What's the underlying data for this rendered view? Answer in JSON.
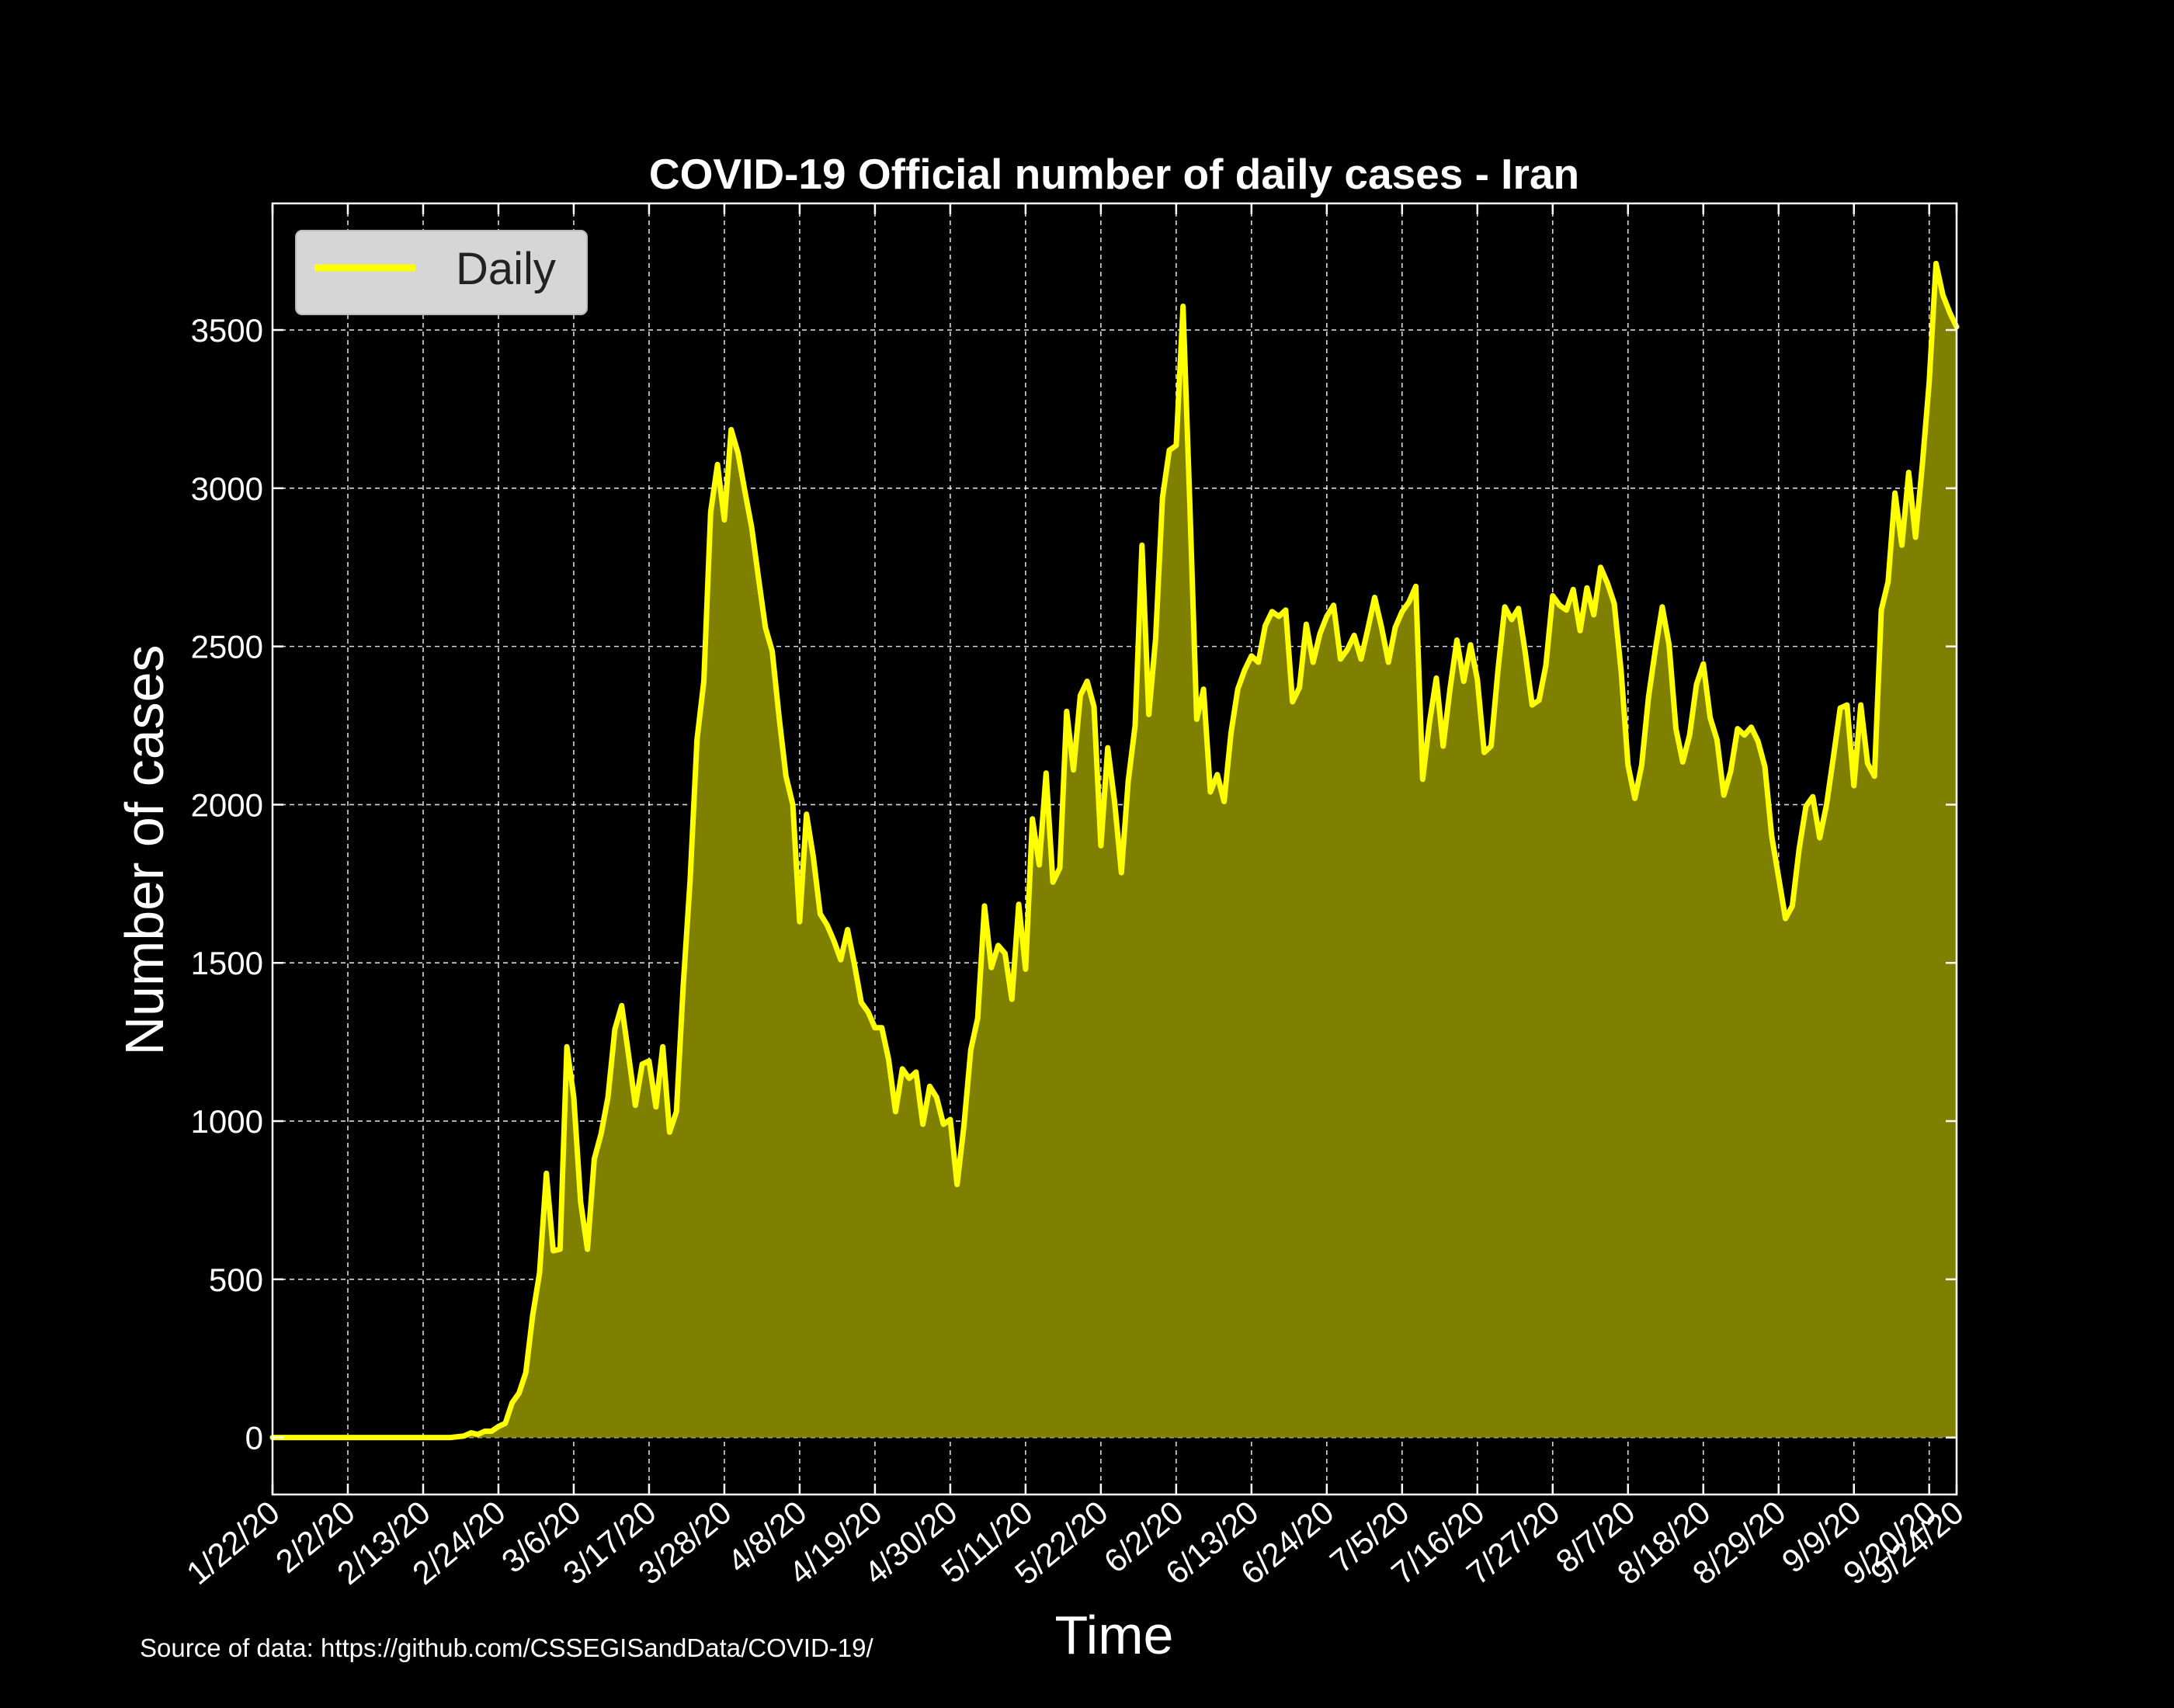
{
  "chart_data": {
    "type": "area",
    "title": "COVID-19 Official number of daily cases - Iran",
    "xlabel": "Time",
    "ylabel": "Number of cases",
    "source_note": "Source of data: https://github.com/CSSEGISandData/COVID-19/",
    "x_start": "1/22/20",
    "x_end": "9/24/20",
    "x_tick_labels": [
      "1/22/20",
      "2/2/20",
      "2/13/20",
      "2/24/20",
      "3/6/20",
      "3/17/20",
      "3/28/20",
      "4/8/20",
      "4/19/20",
      "4/30/20",
      "5/11/20",
      "5/22/20",
      "6/2/20",
      "6/13/20",
      "6/24/20",
      "7/5/20",
      "7/16/20",
      "7/27/20",
      "8/7/20",
      "8/18/20",
      "8/29/20",
      "9/9/20",
      "9/20/20",
      "9/24/20"
    ],
    "y_ticks": [
      0,
      500,
      1000,
      1500,
      2000,
      2500,
      3000,
      3500
    ],
    "ylim": [
      -180,
      3900
    ],
    "grid": true,
    "legend": {
      "position": "top-left",
      "entries": [
        "Daily"
      ]
    },
    "colors": {
      "line": "#ffff00",
      "fill": "#808000",
      "background": "#000000",
      "grid": "#ffffff",
      "axes": "#ffffff"
    },
    "series": [
      {
        "name": "Daily",
        "points": [
          [
            "1/22/20",
            0
          ],
          [
            "2/10/20",
            0
          ],
          [
            "2/17/20",
            0
          ],
          [
            "2/19/20",
            5
          ],
          [
            "2/20/20",
            15
          ],
          [
            "2/21/20",
            10
          ],
          [
            "2/22/20",
            20
          ],
          [
            "2/23/20",
            20
          ],
          [
            "2/24/20",
            35
          ],
          [
            "2/25/20",
            45
          ],
          [
            "2/26/20",
            110
          ],
          [
            "2/27/20",
            140
          ],
          [
            "2/28/20",
            205
          ],
          [
            "2/29/20",
            385
          ],
          [
            "3/1/20",
            520
          ],
          [
            "3/2/20",
            835
          ],
          [
            "3/3/20",
            590
          ],
          [
            "3/4/20",
            595
          ],
          [
            "3/5/20",
            1235
          ],
          [
            "3/6/20",
            1075
          ],
          [
            "3/7/20",
            745
          ],
          [
            "3/8/20",
            595
          ],
          [
            "3/9/20",
            880
          ],
          [
            "3/10/20",
            960
          ],
          [
            "3/11/20",
            1075
          ],
          [
            "3/12/20",
            1290
          ],
          [
            "3/13/20",
            1365
          ],
          [
            "3/14/20",
            1210
          ],
          [
            "3/15/20",
            1050
          ],
          [
            "3/16/20",
            1180
          ],
          [
            "3/17/20",
            1190
          ],
          [
            "3/18/20",
            1045
          ],
          [
            "3/19/20",
            1235
          ],
          [
            "3/20/20",
            965
          ],
          [
            "3/21/20",
            1030
          ],
          [
            "3/22/20",
            1430
          ],
          [
            "3/23/20",
            1760
          ],
          [
            "3/24/20",
            2205
          ],
          [
            "3/25/20",
            2390
          ],
          [
            "3/26/20",
            2925
          ],
          [
            "3/27/20",
            3075
          ],
          [
            "3/28/20",
            2900
          ],
          [
            "3/29/20",
            3185
          ],
          [
            "3/30/20",
            3110
          ],
          [
            "3/31/20",
            2990
          ],
          [
            "4/1/20",
            2875
          ],
          [
            "4/2/20",
            2715
          ],
          [
            "4/3/20",
            2560
          ],
          [
            "4/4/20",
            2485
          ],
          [
            "4/5/20",
            2275
          ],
          [
            "4/6/20",
            2090
          ],
          [
            "4/7/20",
            2000
          ],
          [
            "4/8/20",
            1630
          ],
          [
            "4/9/20",
            1970
          ],
          [
            "4/10/20",
            1835
          ],
          [
            "4/11/20",
            1655
          ],
          [
            "4/12/20",
            1620
          ],
          [
            "4/13/20",
            1570
          ],
          [
            "4/14/20",
            1510
          ],
          [
            "4/15/20",
            1605
          ],
          [
            "4/16/20",
            1495
          ],
          [
            "4/17/20",
            1375
          ],
          [
            "4/18/20",
            1345
          ],
          [
            "4/19/20",
            1295
          ],
          [
            "4/20/20",
            1295
          ],
          [
            "4/21/20",
            1195
          ],
          [
            "4/22/20",
            1030
          ],
          [
            "4/23/20",
            1165
          ],
          [
            "4/24/20",
            1135
          ],
          [
            "4/25/20",
            1155
          ],
          [
            "4/26/20",
            990
          ],
          [
            "4/27/20",
            1110
          ],
          [
            "4/28/20",
            1075
          ],
          [
            "4/29/20",
            990
          ],
          [
            "4/30/20",
            1005
          ],
          [
            "5/1/20",
            800
          ],
          [
            "5/2/20",
            985
          ],
          [
            "5/3/20",
            1225
          ],
          [
            "5/4/20",
            1325
          ],
          [
            "5/5/20",
            1680
          ],
          [
            "5/6/20",
            1485
          ],
          [
            "5/7/20",
            1555
          ],
          [
            "5/8/20",
            1530
          ],
          [
            "5/9/20",
            1385
          ],
          [
            "5/10/20",
            1685
          ],
          [
            "5/11/20",
            1480
          ],
          [
            "5/12/20",
            1955
          ],
          [
            "5/13/20",
            1810
          ],
          [
            "5/14/20",
            2100
          ],
          [
            "5/15/20",
            1755
          ],
          [
            "5/16/20",
            1800
          ],
          [
            "5/17/20",
            2295
          ],
          [
            "5/18/20",
            2110
          ],
          [
            "5/19/20",
            2345
          ],
          [
            "5/20/20",
            2390
          ],
          [
            "5/21/20",
            2310
          ],
          [
            "5/22/20",
            1870
          ],
          [
            "5/23/20",
            2180
          ],
          [
            "5/24/20",
            2010
          ],
          [
            "5/25/20",
            1785
          ],
          [
            "5/26/20",
            2075
          ],
          [
            "5/27/20",
            2250
          ],
          [
            "5/28/20",
            2820
          ],
          [
            "5/29/20",
            2285
          ],
          [
            "5/30/20",
            2525
          ],
          [
            "5/31/20",
            2970
          ],
          [
            "6/1/20",
            3120
          ],
          [
            "6/2/20",
            3135
          ],
          [
            "6/3/20",
            3575
          ],
          [
            "6/4/20",
            2945
          ],
          [
            "6/5/20",
            2270
          ],
          [
            "6/6/20",
            2365
          ],
          [
            "6/7/20",
            2040
          ],
          [
            "6/8/20",
            2095
          ],
          [
            "6/9/20",
            2010
          ],
          [
            "6/10/20",
            2225
          ],
          [
            "6/11/20",
            2365
          ],
          [
            "6/12/20",
            2425
          ],
          [
            "6/13/20",
            2470
          ],
          [
            "6/14/20",
            2450
          ],
          [
            "6/15/20",
            2565
          ],
          [
            "6/16/20",
            2610
          ],
          [
            "6/17/20",
            2595
          ],
          [
            "6/18/20",
            2615
          ],
          [
            "6/19/20",
            2325
          ],
          [
            "6/20/20",
            2370
          ],
          [
            "6/21/20",
            2570
          ],
          [
            "6/22/20",
            2450
          ],
          [
            "6/23/20",
            2540
          ],
          [
            "6/24/20",
            2595
          ],
          [
            "6/25/20",
            2630
          ],
          [
            "6/26/20",
            2460
          ],
          [
            "6/27/20",
            2490
          ],
          [
            "6/28/20",
            2535
          ],
          [
            "6/29/20",
            2460
          ],
          [
            "6/30/20",
            2555
          ],
          [
            "7/1/20",
            2655
          ],
          [
            "7/2/20",
            2560
          ],
          [
            "7/3/20",
            2450
          ],
          [
            "7/4/20",
            2560
          ],
          [
            "7/5/20",
            2610
          ],
          [
            "7/6/20",
            2640
          ],
          [
            "7/7/20",
            2690
          ],
          [
            "7/8/20",
            2080
          ],
          [
            "7/9/20",
            2260
          ],
          [
            "7/10/20",
            2400
          ],
          [
            "7/11/20",
            2185
          ],
          [
            "7/12/20",
            2365
          ],
          [
            "7/13/20",
            2520
          ],
          [
            "7/14/20",
            2390
          ],
          [
            "7/15/20",
            2505
          ],
          [
            "7/16/20",
            2395
          ],
          [
            "7/17/20",
            2165
          ],
          [
            "7/18/20",
            2185
          ],
          [
            "7/19/20",
            2425
          ],
          [
            "7/20/20",
            2625
          ],
          [
            "7/21/20",
            2585
          ],
          [
            "7/22/20",
            2620
          ],
          [
            "7/23/20",
            2480
          ],
          [
            "7/24/20",
            2315
          ],
          [
            "7/25/20",
            2330
          ],
          [
            "7/26/20",
            2440
          ],
          [
            "7/27/20",
            2660
          ],
          [
            "7/28/20",
            2630
          ],
          [
            "7/29/20",
            2615
          ],
          [
            "7/30/20",
            2680
          ],
          [
            "7/31/20",
            2550
          ],
          [
            "8/1/20",
            2685
          ],
          [
            "8/2/20",
            2600
          ],
          [
            "8/3/20",
            2750
          ],
          [
            "8/4/20",
            2700
          ],
          [
            "8/5/20",
            2635
          ],
          [
            "8/6/20",
            2420
          ],
          [
            "8/7/20",
            2125
          ],
          [
            "8/8/20",
            2020
          ],
          [
            "8/9/20",
            2125
          ],
          [
            "8/10/20",
            2340
          ],
          [
            "8/11/20",
            2490
          ],
          [
            "8/12/20",
            2625
          ],
          [
            "8/13/20",
            2505
          ],
          [
            "8/14/20",
            2240
          ],
          [
            "8/15/20",
            2135
          ],
          [
            "8/16/20",
            2220
          ],
          [
            "8/17/20",
            2380
          ],
          [
            "8/18/20",
            2445
          ],
          [
            "8/19/20",
            2275
          ],
          [
            "8/20/20",
            2205
          ],
          [
            "8/21/20",
            2030
          ],
          [
            "8/22/20",
            2105
          ],
          [
            "8/23/20",
            2240
          ],
          [
            "8/24/20",
            2220
          ],
          [
            "8/25/20",
            2245
          ],
          [
            "8/26/20",
            2200
          ],
          [
            "8/27/20",
            2120
          ],
          [
            "8/28/20",
            1900
          ],
          [
            "8/29/20",
            1770
          ],
          [
            "8/30/20",
            1640
          ],
          [
            "8/31/20",
            1680
          ],
          [
            "9/1/20",
            1860
          ],
          [
            "9/2/20",
            1995
          ],
          [
            "9/3/20",
            2025
          ],
          [
            "9/4/20",
            1895
          ],
          [
            "9/5/20",
            2000
          ],
          [
            "9/6/20",
            2150
          ],
          [
            "9/7/20",
            2305
          ],
          [
            "9/8/20",
            2315
          ],
          [
            "9/9/20",
            2060
          ],
          [
            "9/10/20",
            2315
          ],
          [
            "9/11/20",
            2130
          ],
          [
            "9/12/20",
            2090
          ],
          [
            "9/13/20",
            2615
          ],
          [
            "9/14/20",
            2705
          ],
          [
            "9/15/20",
            2985
          ],
          [
            "9/16/20",
            2820
          ],
          [
            "9/17/20",
            3050
          ],
          [
            "9/18/20",
            2845
          ],
          [
            "9/19/20",
            3075
          ],
          [
            "9/20/20",
            3335
          ],
          [
            "9/21/20",
            3710
          ],
          [
            "9/22/20",
            3610
          ],
          [
            "9/23/20",
            3555
          ],
          [
            "9/24/20",
            3510
          ]
        ]
      }
    ]
  }
}
